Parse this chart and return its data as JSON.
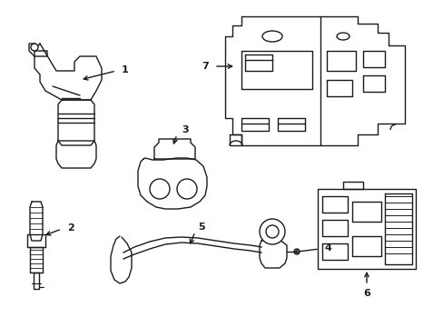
{
  "background_color": "#ffffff",
  "line_color": "#1a1a1a",
  "line_width": 1.0,
  "fig_width": 4.89,
  "fig_height": 3.6,
  "dpi": 100
}
